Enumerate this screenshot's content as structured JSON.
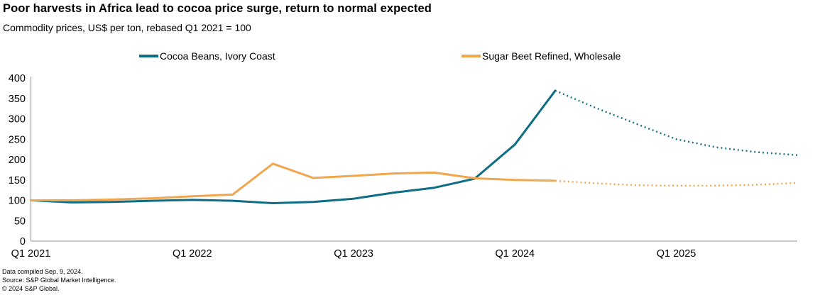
{
  "header": {
    "title": "Poor harvests in Africa lead to cocoa price surge, return to normal expected",
    "subtitle": "Commodity prices, US$ per ton, rebased Q1 2021 = 100"
  },
  "legend": [
    {
      "label": "Cocoa Beans, Ivory Coast",
      "color": "#0E6C85"
    },
    {
      "label": "Sugar Beet Refined, Wholesale",
      "color": "#F0A64F"
    }
  ],
  "footer": {
    "line1": "Data compiled Sep. 9, 2024.",
    "line2": "Source: S&P Global Market Intelligence.",
    "line3": "© 2024 S&P Global."
  },
  "chart_data": {
    "type": "line",
    "title": "Poor harvests in Africa lead to cocoa price surge, return to normal expected",
    "subtitle": "Commodity prices, US$ per ton, rebased Q1 2021 = 100",
    "x": [
      "Q1 2021",
      "Q2 2021",
      "Q3 2021",
      "Q4 2021",
      "Q1 2022",
      "Q2 2022",
      "Q3 2022",
      "Q4 2022",
      "Q1 2023",
      "Q2 2023",
      "Q3 2023",
      "Q4 2023",
      "Q1 2024",
      "Q2 2024",
      "Q3 2024",
      "Q4 2024",
      "Q1 2025",
      "Q2 2025",
      "Q3 2025",
      "Q4 2025"
    ],
    "x_tick_labels": [
      "Q1 2021",
      "Q1 2022",
      "Q1 2023",
      "Q1 2024",
      "Q1 2025"
    ],
    "x_tick_indices": [
      0,
      4,
      8,
      12,
      16
    ],
    "ylim": [
      0,
      400
    ],
    "y_ticks": [
      0,
      50,
      100,
      150,
      200,
      250,
      300,
      350,
      400
    ],
    "grid": false,
    "legend_position": "top",
    "axis_color": "#A8A8A8",
    "series": [
      {
        "name": "Cocoa Beans, Ivory Coast",
        "color": "#0E6C85",
        "values": [
          100,
          95,
          96,
          99,
          101,
          99,
          93,
          96,
          104,
          119,
          131,
          153,
          237,
          369,
          327,
          288,
          250,
          230,
          218,
          211
        ],
        "solid_until": "Q2 2024",
        "solid_until_index": 13,
        "forecast_style": "dotted"
      },
      {
        "name": "Sugar Beet Refined, Wholesale",
        "color": "#F0A64F",
        "values": [
          100,
          100,
          102,
          105,
          110,
          114,
          190,
          155,
          160,
          166,
          168,
          154,
          150,
          148,
          142,
          137,
          136,
          136,
          138,
          143
        ],
        "solid_until": "Q2 2024",
        "solid_until_index": 13,
        "forecast_style": "dotted"
      }
    ]
  }
}
